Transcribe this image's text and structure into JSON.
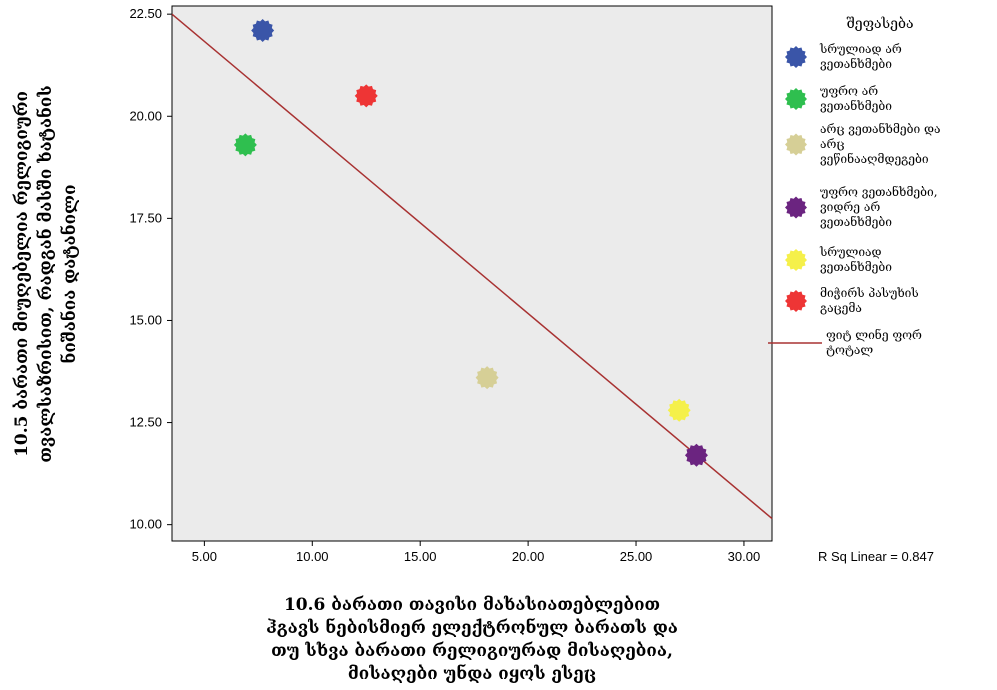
{
  "chart_data": {
    "type": "scatter",
    "xlabel": "10.6 ბარათი თავისი მახასიათებლებით ჰგავს ნებისმიერ ელექტრონულ ბარათს და თუ სხვა ბარათი რელიგიურად მისაღებია, მისაღები უნდა იყოს ესეც",
    "xlabel_lines": [
      "10.6 ბარათი თავისი მახასიათებლებით",
      "ჰგავს ნებისმიერ ელექტრონულ ბარათს და",
      "თუ სხვა ბარათი რელიგიურად მისაღებია,",
      "მისაღები უნდა იყოს ესეც"
    ],
    "ylabel": "10.5 ბარათი მიუღებელია რელიგიური თვალსაზრისით, რადგან მასში ხატანის ნიშანია დატანილი",
    "ylabel_lines": [
      "10.5 ბარათი მიუღებელია რელიგიური",
      "თვალსაზრისით, რადგან მასში ხატანის",
      "ნიშანია დატანილი"
    ],
    "xlim": [
      3.5,
      31.3
    ],
    "ylim": [
      9.6,
      22.7
    ],
    "x_ticks": [
      "5.00",
      "10.00",
      "15.00",
      "20.00",
      "25.00",
      "30.00"
    ],
    "y_ticks": [
      "10.00",
      "12.50",
      "15.00",
      "17.50",
      "20.00",
      "22.50"
    ],
    "x_tick_values": [
      5,
      10,
      15,
      20,
      25,
      30
    ],
    "y_tick_values": [
      10,
      12.5,
      15,
      17.5,
      20,
      22.5
    ],
    "grid": false,
    "legend_position": "right",
    "legend_title": "შეფასება",
    "series": [
      {
        "name": "სრულიად არ ვეთანხმები",
        "label_lines": [
          "სრულიად არ",
          "ვეთანხმები"
        ],
        "color": "#3a55a8",
        "x": 7.7,
        "y": 22.1
      },
      {
        "name": "უფრო არ ვეთანხმები",
        "label_lines": [
          "უფრო არ",
          "ვეთანხმები"
        ],
        "color": "#2fbf4f",
        "x": 6.9,
        "y": 19.3
      },
      {
        "name": "არც ვეთანხმები და არც ვეწინააღმდეგები",
        "label_lines": [
          "არც ვეთანხმები და",
          "არც",
          "ვეწინააღმდეგები"
        ],
        "color": "#d6cf96",
        "x": 18.1,
        "y": 13.6
      },
      {
        "name": "უფრო ვეთანხმები, ვიდრე არ ვეთანხმები",
        "label_lines": [
          "უფრო ვეთანხმები,",
          "ვიდრე არ",
          "ვეთანხმები"
        ],
        "color": "#6b2480",
        "x": 27.8,
        "y": 11.7
      },
      {
        "name": "სრულიად ვეთანხმები",
        "label_lines": [
          "სრულიად",
          "ვეთანხმები"
        ],
        "color": "#f5f04a",
        "x": 27.0,
        "y": 12.8
      },
      {
        "name": "მიჭირს პასუხის გაცემა",
        "label_lines": [
          "მიჭირს პასუხის",
          "გაცემა"
        ],
        "color": "#ee3535",
        "x": 12.5,
        "y": 20.5
      }
    ],
    "fit_line": {
      "name": "ფიტ ლინე ფორ ტოტალ",
      "label_lines": [
        "ფიტ ლინე ფორ",
        "ტოტალ"
      ],
      "color": "#a83232",
      "x": [
        3.5,
        31.3
      ],
      "y": [
        22.5,
        10.15
      ]
    },
    "r_squared_label": "R Sq Linear = 0.847"
  }
}
